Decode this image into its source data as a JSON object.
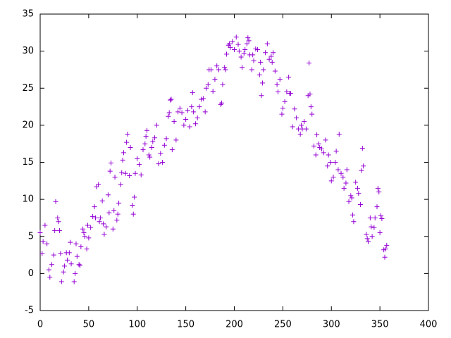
{
  "chart_data": {
    "type": "scatter",
    "color": "#9400d3",
    "x": [
      0,
      2,
      3,
      5,
      7,
      9,
      10,
      12,
      14,
      15,
      16,
      18,
      19,
      20,
      21,
      22,
      24,
      25,
      27,
      28,
      30,
      31,
      32,
      35,
      36,
      37,
      38,
      40,
      41,
      42,
      44,
      45,
      46,
      48,
      49,
      50,
      52,
      54,
      56,
      57,
      58,
      60,
      61,
      62,
      64,
      65,
      66,
      68,
      70,
      71,
      72,
      73,
      75,
      76,
      77,
      79,
      80,
      81,
      83,
      84,
      85,
      86,
      88,
      89,
      90,
      92,
      93,
      95,
      96,
      97,
      98,
      100,
      102,
      104,
      106,
      108,
      109,
      110,
      112,
      113,
      115,
      116,
      118,
      120,
      122,
      124,
      126,
      128,
      130,
      132,
      133,
      134,
      135,
      136,
      138,
      140,
      142,
      144,
      146,
      148,
      150,
      152,
      154,
      156,
      157,
      158,
      160,
      162,
      164,
      166,
      168,
      170,
      171,
      173,
      174,
      176,
      178,
      180,
      182,
      184,
      186,
      187,
      188,
      190,
      191,
      192,
      194,
      195,
      196,
      198,
      200,
      202,
      204,
      205,
      207,
      208,
      210,
      211,
      213,
      214,
      215,
      216,
      218,
      219,
      220,
      222,
      224,
      226,
      227,
      228,
      229,
      230,
      232,
      234,
      236,
      238,
      239,
      240,
      242,
      244,
      245,
      247,
      249,
      250,
      252,
      254,
      256,
      257,
      258,
      260,
      262,
      264,
      266,
      268,
      269,
      270,
      272,
      274,
      276,
      277,
      278,
      279,
      280,
      282,
      284,
      285,
      287,
      288,
      290,
      292,
      294,
      296,
      297,
      299,
      300,
      302,
      304,
      305,
      307,
      308,
      310,
      312,
      313,
      315,
      316,
      318,
      320,
      321,
      322,
      323,
      325,
      327,
      328,
      330,
      331,
      332,
      333,
      336,
      337,
      338,
      340,
      341,
      342,
      344,
      345,
      347,
      348,
      349,
      350,
      351,
      352,
      354,
      355,
      356,
      357
    ],
    "values": [
      5.5,
      2.7,
      4.3,
      6.5,
      4,
      0.5,
      -0.5,
      1.2,
      2.5,
      5.8,
      9.7,
      7.5,
      7,
      5.8,
      2.7,
      -1.1,
      0.2,
      1,
      2.8,
      1.8,
      2.8,
      4.2,
      1.3,
      -1.1,
      0,
      4,
      2.3,
      1.2,
      1.1,
      3.6,
      6,
      5.5,
      5,
      3.3,
      6.5,
      4.8,
      6.2,
      7.7,
      9,
      7.5,
      11.7,
      12,
      7,
      7.5,
      9.8,
      6.7,
      5.3,
      6.3,
      10.6,
      8.2,
      13.8,
      14.9,
      6,
      8.5,
      13,
      7.2,
      8,
      9.5,
      12,
      13.6,
      15.3,
      16.3,
      13.5,
      17.7,
      18.8,
      13.2,
      17,
      9.2,
      8,
      10.3,
      13.5,
      15.5,
      14.7,
      13.3,
      16.7,
      17.5,
      18.5,
      19.3,
      16,
      15.7,
      17,
      17.8,
      18.3,
      20,
      14.8,
      16.2,
      15,
      17.3,
      18.2,
      21.2,
      21.7,
      23.4,
      23.5,
      16.7,
      20.5,
      18,
      21.8,
      22.3,
      21.7,
      20,
      20.8,
      22,
      19.8,
      22.5,
      24.4,
      21.8,
      20.2,
      21,
      22.5,
      23.5,
      23.6,
      21.8,
      25,
      25.5,
      27.5,
      27.5,
      24.6,
      26.2,
      28,
      27.5,
      22.8,
      23,
      25.5,
      27.8,
      27.5,
      29.6,
      30.8,
      31,
      30.5,
      31.3,
      30.2,
      31.9,
      30.9,
      30,
      29.2,
      27.8,
      29.7,
      30.2,
      31,
      31.8,
      31.4,
      29.5,
      27.5,
      29.5,
      28.7,
      30.3,
      30.2,
      26.8,
      28.5,
      24,
      25.7,
      27.5,
      29.8,
      31,
      28.9,
      29.3,
      28.5,
      29.8,
      27.3,
      25.5,
      24.5,
      26.2,
      21.5,
      22.3,
      23.2,
      24.5,
      26.5,
      24.3,
      24.3,
      19.8,
      22.2,
      21,
      19.5,
      18.8,
      20,
      19.5,
      20.5,
      19.5,
      24,
      28.4,
      24.2,
      22.5,
      21.5,
      17.2,
      16,
      18.7,
      17.5,
      17,
      16.8,
      16.3,
      18,
      14.5,
      16,
      15,
      12.5,
      13,
      15,
      16.5,
      14,
      18.8,
      13.5,
      13,
      11.5,
      12.2,
      14,
      9.7,
      10.5,
      10.2,
      7.9,
      7,
      12.3,
      11.5,
      10.8,
      9.3,
      13.9,
      16.9,
      14.5,
      5.3,
      4.7,
      4.3,
      7.5,
      6.3,
      5,
      6.2,
      7.5,
      9,
      11.5,
      11,
      5.5,
      7.8,
      7.4,
      3.2,
      2.2,
      3.3,
      3.8
    ],
    "xlim": [
      0,
      400
    ],
    "ylim": [
      -5,
      35
    ],
    "xticks": [
      0,
      50,
      100,
      150,
      200,
      250,
      300,
      350,
      400
    ],
    "yticks": [
      -5,
      0,
      5,
      10,
      15,
      20,
      25,
      30,
      35
    ]
  }
}
